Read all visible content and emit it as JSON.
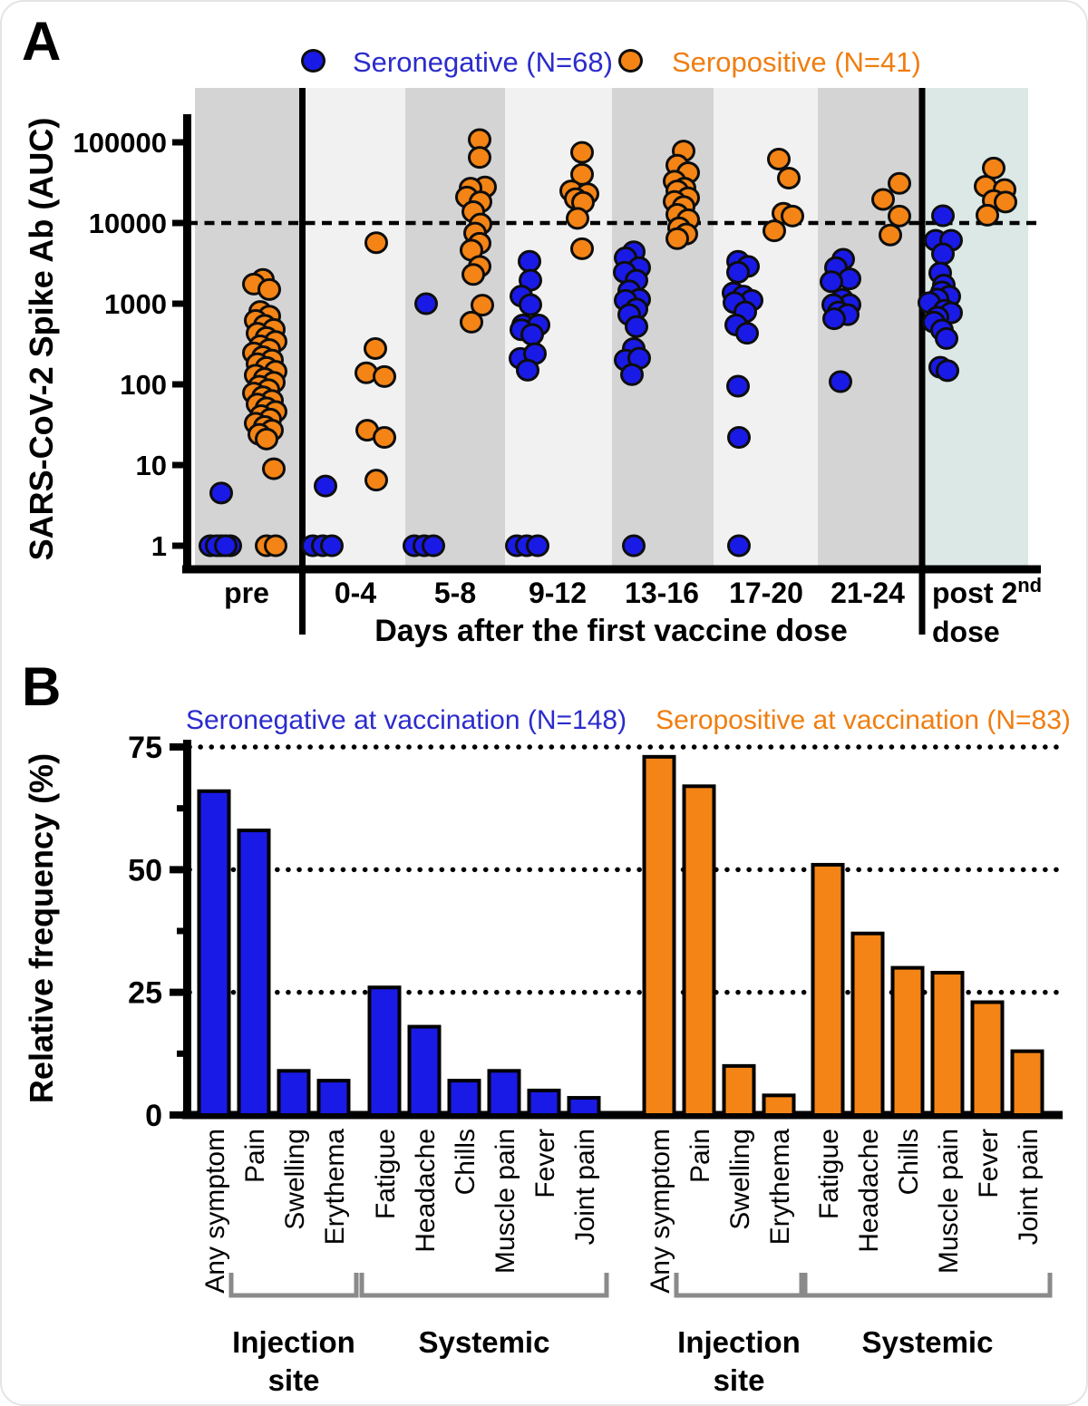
{
  "colors": {
    "seronegative": "#1a1ae6",
    "seronegative_text": "#2b2bcc",
    "seropositive": "#f38415",
    "seropositive_text": "#f07d10",
    "band_dark": "#d4d4d4",
    "band_light": "#f1f1f1",
    "band_post_dose": "#dbe8e6",
    "bracket": "#8a8a8a",
    "outline": "#0d0d0d",
    "axis": "#000000"
  },
  "chart_data": [
    {
      "type": "scatter",
      "panel": "A",
      "ylabel": "SARS-CoV-2 Spike Ab (AUC)",
      "xlabel": "Days after the first vaccine dose",
      "yscale": "log",
      "ylim": [
        1,
        200000
      ],
      "yticks": [
        1,
        10,
        100,
        1000,
        10000,
        100000
      ],
      "dashed_reference_y": 10000,
      "categories": [
        "pre",
        "0-4",
        "5-8",
        "9-12",
        "13-16",
        "17-20",
        "21-24",
        "post 2nd dose"
      ],
      "categories_display": [
        [
          "pre"
        ],
        [
          "0-4"
        ],
        [
          "5-8"
        ],
        [
          "9-12"
        ],
        [
          "13-16"
        ],
        [
          "17-20"
        ],
        [
          "21-24"
        ],
        [
          "post 2^nd",
          "dose"
        ]
      ],
      "legend": [
        {
          "label": "Seronegative (N=68)",
          "color_key": "seronegative"
        },
        {
          "label": "Seropositive (N=41)",
          "color_key": "seropositive"
        }
      ],
      "series": [
        {
          "name": "Seronegative (N=68)",
          "color_key": "seronegative",
          "points": [
            [
              [
                -40,
                1
              ],
              [
                -28,
                1
              ],
              [
                -18,
                1
              ],
              [
                -33,
                1
              ],
              [
                -23,
                1
              ],
              [
                -28,
                4.5
              ]
            ],
            [
              [
                -47,
                1
              ],
              [
                -36,
                1
              ],
              [
                -26,
                1
              ],
              [
                -33,
                5.5
              ]
            ],
            [
              [
                -45,
                1
              ],
              [
                -34,
                1
              ],
              [
                -24,
                1
              ],
              [
                -32,
                1000
              ]
            ],
            [
              [
                -31,
                3350
              ],
              [
                -30,
                1950
              ],
              [
                -40,
                1240
              ],
              [
                -30,
                970
              ],
              [
                -38,
                545
              ],
              [
                -21,
                545
              ],
              [
                -40,
                475
              ],
              [
                -28,
                415
              ],
              [
                -41,
                210
              ],
              [
                -25,
                240
              ],
              [
                -33,
                150
              ],
              [
                -45,
                1
              ],
              [
                -34,
                1
              ],
              [
                -22,
                1
              ]
            ],
            [
              [
                -31,
                4400
              ],
              [
                -40,
                3700
              ],
              [
                -25,
                2800
              ],
              [
                -41,
                2450
              ],
              [
                -28,
                1950
              ],
              [
                -36,
                1440
              ],
              [
                -25,
                1130
              ],
              [
                -40,
                1100
              ],
              [
                -28,
                860
              ],
              [
                -36,
                730
              ],
              [
                -28,
                520
              ],
              [
                -31,
                278
              ],
              [
                -40,
                200
              ],
              [
                -25,
                211
              ],
              [
                -33,
                132
              ],
              [
                -31,
                1
              ]
            ],
            [
              [
                -31,
                3350
              ],
              [
                -20,
                2900
              ],
              [
                -31,
                2450
              ],
              [
                -36,
                1360
              ],
              [
                -25,
                1240
              ],
              [
                -16,
                1100
              ],
              [
                -35,
                1030
              ],
              [
                -23,
                790
              ],
              [
                -33,
                545
              ],
              [
                -21,
                430
              ],
              [
                -31,
                95
              ],
              [
                -30,
                22
              ],
              [
                -30,
                1
              ]
            ],
            [
              [
                -27,
                3550
              ],
              [
                -35,
                2800
              ],
              [
                -20,
                2030
              ],
              [
                -40,
                1870
              ],
              [
                -28,
                1130
              ],
              [
                -20,
                970
              ],
              [
                -38,
                970
              ],
              [
                -32,
                790
              ],
              [
                -22,
                730
              ],
              [
                -37,
                650
              ],
              [
                -30,
                108
              ]
            ],
            [
              [
                -37,
                12300
              ],
              [
                -45,
                6100
              ],
              [
                -28,
                6100
              ],
              [
                -37,
                4150
              ],
              [
                -40,
                2400
              ],
              [
                -36,
                1700
              ],
              [
                -38,
                1400
              ],
              [
                -30,
                1230
              ],
              [
                -43,
                1140
              ],
              [
                -52,
                1030
              ],
              [
                -35,
                830
              ],
              [
                -28,
                770
              ],
              [
                -43,
                680
              ],
              [
                -47,
                590
              ],
              [
                -38,
                470
              ],
              [
                -33,
                370
              ],
              [
                -40,
                163
              ],
              [
                -32,
                148
              ]
            ]
          ]
        },
        {
          "name": "Seropositive (N=41)",
          "color_key": "seropositive",
          "points": [
            [
              [
                18,
                2000
              ],
              [
                8,
                1750
              ],
              [
                25,
                1500
              ],
              [
                15,
                800
              ],
              [
                25,
                700
              ],
              [
                10,
                620
              ],
              [
                20,
                540
              ],
              [
                30,
                480
              ],
              [
                12,
                430
              ],
              [
                22,
                380
              ],
              [
                32,
                340
              ],
              [
                15,
                300
              ],
              [
                25,
                270
              ],
              [
                8,
                245
              ],
              [
                18,
                220
              ],
              [
                28,
                200
              ],
              [
                12,
                180
              ],
              [
                22,
                162
              ],
              [
                32,
                145
              ],
              [
                10,
                130
              ],
              [
                20,
                118
              ],
              [
                30,
                106
              ],
              [
                14,
                95
              ],
              [
                24,
                86
              ],
              [
                8,
                78
              ],
              [
                18,
                70
              ],
              [
                28,
                63
              ],
              [
                12,
                57
              ],
              [
                22,
                51
              ],
              [
                32,
                46
              ],
              [
                16,
                41
              ],
              [
                26,
                37
              ],
              [
                10,
                33
              ],
              [
                20,
                30
              ],
              [
                28,
                27
              ],
              [
                14,
                24
              ],
              [
                22,
                21
              ],
              [
                30,
                9
              ],
              [
                22,
                1
              ],
              [
                32,
                1
              ]
            ],
            [
              [
                23,
                5700
              ],
              [
                22,
                278
              ],
              [
                12,
                139
              ],
              [
                32,
                125
              ],
              [
                13,
                27
              ],
              [
                32,
                22
              ],
              [
                23,
                6.5
              ]
            ],
            [
              [
                27,
                108000
              ],
              [
                27,
                65000
              ],
              [
                33,
                28000
              ],
              [
                17,
                27000
              ],
              [
                13,
                21000
              ],
              [
                28,
                18300
              ],
              [
                20,
                13800
              ],
              [
                28,
                9700
              ],
              [
                22,
                7500
              ],
              [
                27,
                5600
              ],
              [
                18,
                4600
              ],
              [
                27,
                2900
              ],
              [
                20,
                2300
              ],
              [
                30,
                960
              ],
              [
                18,
                590
              ]
            ],
            [
              [
                27,
                75000
              ],
              [
                27,
                40000
              ],
              [
                15,
                25000
              ],
              [
                33,
                23000
              ],
              [
                20,
                20000
              ],
              [
                28,
                18000
              ],
              [
                22,
                11400
              ],
              [
                27,
                4800
              ]
            ],
            [
              [
                24,
                78000
              ],
              [
                17,
                52000
              ],
              [
                29,
                42000
              ],
              [
                14,
                33000
              ],
              [
                25,
                27000
              ],
              [
                17,
                25000
              ],
              [
                29,
                20500
              ],
              [
                14,
                18500
              ],
              [
                24,
                16000
              ],
              [
                17,
                12800
              ],
              [
                29,
                11000
              ],
              [
                19,
                8700
              ],
              [
                27,
                7300
              ],
              [
                17,
                6400
              ]
            ],
            [
              [
                14,
                62000
              ],
              [
                25,
                36000
              ],
              [
                19,
                13200
              ],
              [
                29,
                12200
              ],
              [
                9,
                8000
              ]
            ],
            [
              [
                35,
                31000
              ],
              [
                17,
                19600
              ],
              [
                35,
                12200
              ],
              [
                25,
                7100
              ]
            ],
            [
              [
                19,
                48000
              ],
              [
                10,
                28500
              ],
              [
                31,
                26000
              ],
              [
                19,
                19000
              ],
              [
                32,
                18200
              ],
              [
                12,
                12500
              ]
            ]
          ]
        }
      ]
    },
    {
      "type": "bar",
      "panel": "B",
      "ylabel": "Relative frequency (%)",
      "yticks": [
        0,
        25,
        50,
        75
      ],
      "minor_yticks": [
        12.5,
        37.5,
        62.5
      ],
      "dotted_gridlines": [
        25,
        50,
        75
      ],
      "ylim": [
        0,
        77
      ],
      "categories": [
        "Any symptom",
        "Pain",
        "Swelling",
        "Erythema",
        "Fatigue",
        "Headache",
        "Chills",
        "Muscle pain",
        "Fever",
        "Joint pain"
      ],
      "series": [
        {
          "name": "Seronegative at vaccination (N=148)",
          "color_key": "seronegative",
          "values": [
            66,
            58,
            9,
            7,
            26,
            18,
            7,
            9,
            5,
            3.5
          ]
        },
        {
          "name": "Seropositive at vaccination (N=83)",
          "color_key": "seropositive",
          "values": [
            73,
            67,
            10,
            4,
            51,
            37,
            30,
            29,
            23,
            13
          ]
        }
      ],
      "group_brackets": [
        {
          "label_lines": [
            "Injection",
            "site"
          ],
          "series": 0,
          "from": 1,
          "to": 3
        },
        {
          "label_lines": [
            "Systemic"
          ],
          "series": 0,
          "from": 4,
          "to": 9
        },
        {
          "label_lines": [
            "Injection",
            "site"
          ],
          "series": 1,
          "from": 1,
          "to": 3
        },
        {
          "label_lines": [
            "Systemic"
          ],
          "series": 1,
          "from": 4,
          "to": 9
        }
      ]
    }
  ]
}
